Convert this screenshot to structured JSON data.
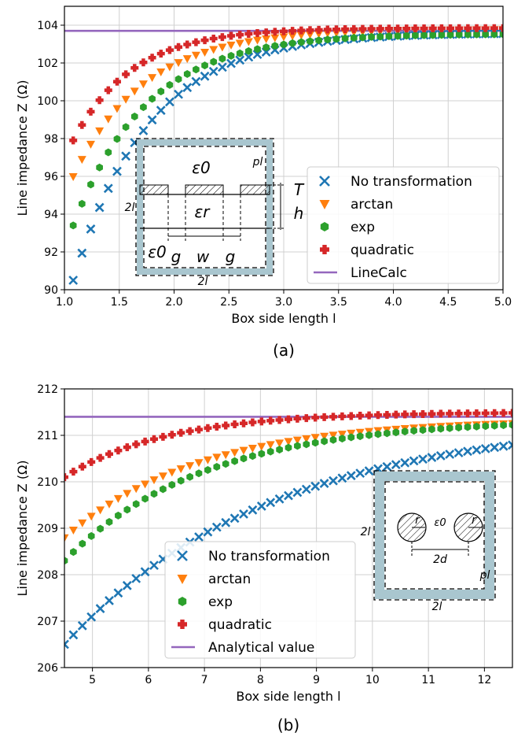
{
  "colors": {
    "no_transformation": "#1f77b4",
    "arctan": "#ff7f0e",
    "exp": "#2ca02c",
    "quadratic": "#d62728",
    "reference": "#9467bd",
    "grid": "#d0d0d0",
    "boundary": "#a9c6cf"
  },
  "chart_data": [
    {
      "type": "scatter",
      "panel_label": "(a)",
      "xlabel": "Box side length l",
      "ylabel": "Line impedance Z (Ω)",
      "xlim": [
        1.0,
        5.0
      ],
      "ylim": [
        90,
        105
      ],
      "xticks": [
        "1.0",
        "1.5",
        "2.0",
        "2.5",
        "3.0",
        "3.5",
        "4.0",
        "4.5",
        "5.0"
      ],
      "yticks": [
        "90",
        "92",
        "94",
        "96",
        "98",
        "100",
        "102",
        "104"
      ],
      "grid": true,
      "legend_position": "lower-right",
      "x_start": 1.08,
      "x_step": 0.08,
      "n_points": 50,
      "series": [
        {
          "name": "No transformation",
          "marker": "x",
          "first": 90.5,
          "plateau": 103.6,
          "rate": 1.45
        },
        {
          "name": "arctan",
          "marker": "triangle-down",
          "first": 96.0,
          "plateau": 103.8,
          "rate": 1.55
        },
        {
          "name": "exp",
          "marker": "hexagon",
          "first": 93.4,
          "plateau": 103.55,
          "rate": 1.5
        },
        {
          "name": "quadratic",
          "marker": "plus",
          "first": 97.9,
          "plateau": 103.85,
          "rate": 1.85
        }
      ],
      "reference": {
        "name": "LineCalc",
        "value": 103.7
      },
      "inset": {
        "labels": [
          "ε0",
          "εr",
          "ε0",
          "g",
          "w",
          "g",
          "T",
          "h",
          "2l",
          "2l",
          "pl"
        ]
      }
    },
    {
      "type": "scatter",
      "panel_label": "(b)",
      "xlabel": "Box side length l",
      "ylabel": "Line impedance Z (Ω)",
      "xlim": [
        4.5,
        12.5
      ],
      "ylim": [
        206,
        212
      ],
      "xticks": [
        "5",
        "6",
        "7",
        "8",
        "9",
        "10",
        "11",
        "12"
      ],
      "yticks": [
        "206",
        "207",
        "208",
        "209",
        "210",
        "211",
        "212"
      ],
      "grid": true,
      "legend_position": "lower-center",
      "x_start": 4.5,
      "x_step": 0.16,
      "n_points": 51,
      "series": [
        {
          "name": "No transformation",
          "marker": "x",
          "first": 206.5,
          "plateau": 211.35,
          "rate": 0.27
        },
        {
          "name": "arctan",
          "marker": "triangle-down",
          "first": 208.8,
          "plateau": 211.35,
          "rate": 0.42
        },
        {
          "name": "exp",
          "marker": "hexagon",
          "first": 208.3,
          "plateau": 211.35,
          "rate": 0.4
        },
        {
          "name": "quadratic",
          "marker": "plus",
          "first": 210.1,
          "plateau": 211.5,
          "rate": 0.55
        }
      ],
      "reference": {
        "name": "Analytical value",
        "value": 211.4
      },
      "inset": {
        "labels": [
          "ε0",
          "2d",
          "2l",
          "2l",
          "pl",
          "r",
          "r"
        ]
      }
    }
  ]
}
